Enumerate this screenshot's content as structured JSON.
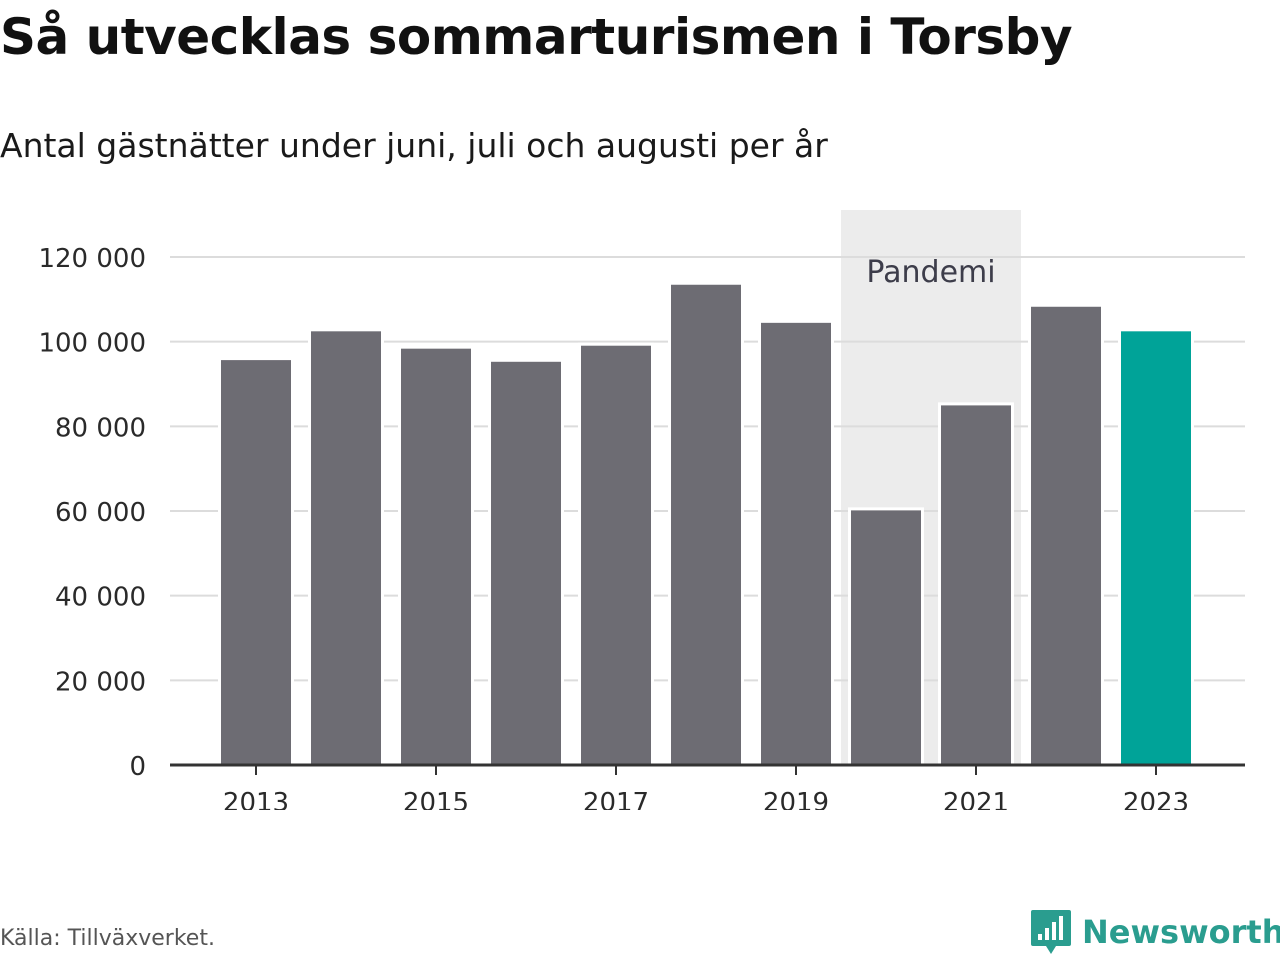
{
  "header": {
    "title": "Så utvecklas sommarturismen i Torsby",
    "subtitle": "Antal gästnätter under juni, juli och augusti per år"
  },
  "footer": {
    "source": "Källa: Tillväxverket.",
    "brand": "Newsworthy",
    "brand_icon": "bar-chart-icon"
  },
  "colors": {
    "bar": "#6d6c73",
    "highlight": "#00a398",
    "band": "#ececec",
    "brand": "#2a9d8f"
  },
  "chart_data": {
    "type": "bar",
    "categories": [
      "2013",
      "2014",
      "2015",
      "2016",
      "2017",
      "2018",
      "2019",
      "2020",
      "2021",
      "2022",
      "2023"
    ],
    "values": [
      96000,
      102800,
      98700,
      95600,
      99400,
      113800,
      104800,
      60500,
      85300,
      108600,
      102800
    ],
    "highlight_category": "2023",
    "x_tick_labels": [
      "2013",
      "2015",
      "2017",
      "2019",
      "2021",
      "2023"
    ],
    "y_ticks": [
      0,
      20000,
      40000,
      60000,
      80000,
      100000,
      120000
    ],
    "y_tick_labels": [
      "0",
      "20 000",
      "40 000",
      "60 000",
      "80 000",
      "100 000",
      "120 000"
    ],
    "ylim": [
      0,
      120000
    ],
    "grid": true,
    "annotation": {
      "label": "Pandemi",
      "from": "2020",
      "to": "2021"
    }
  }
}
